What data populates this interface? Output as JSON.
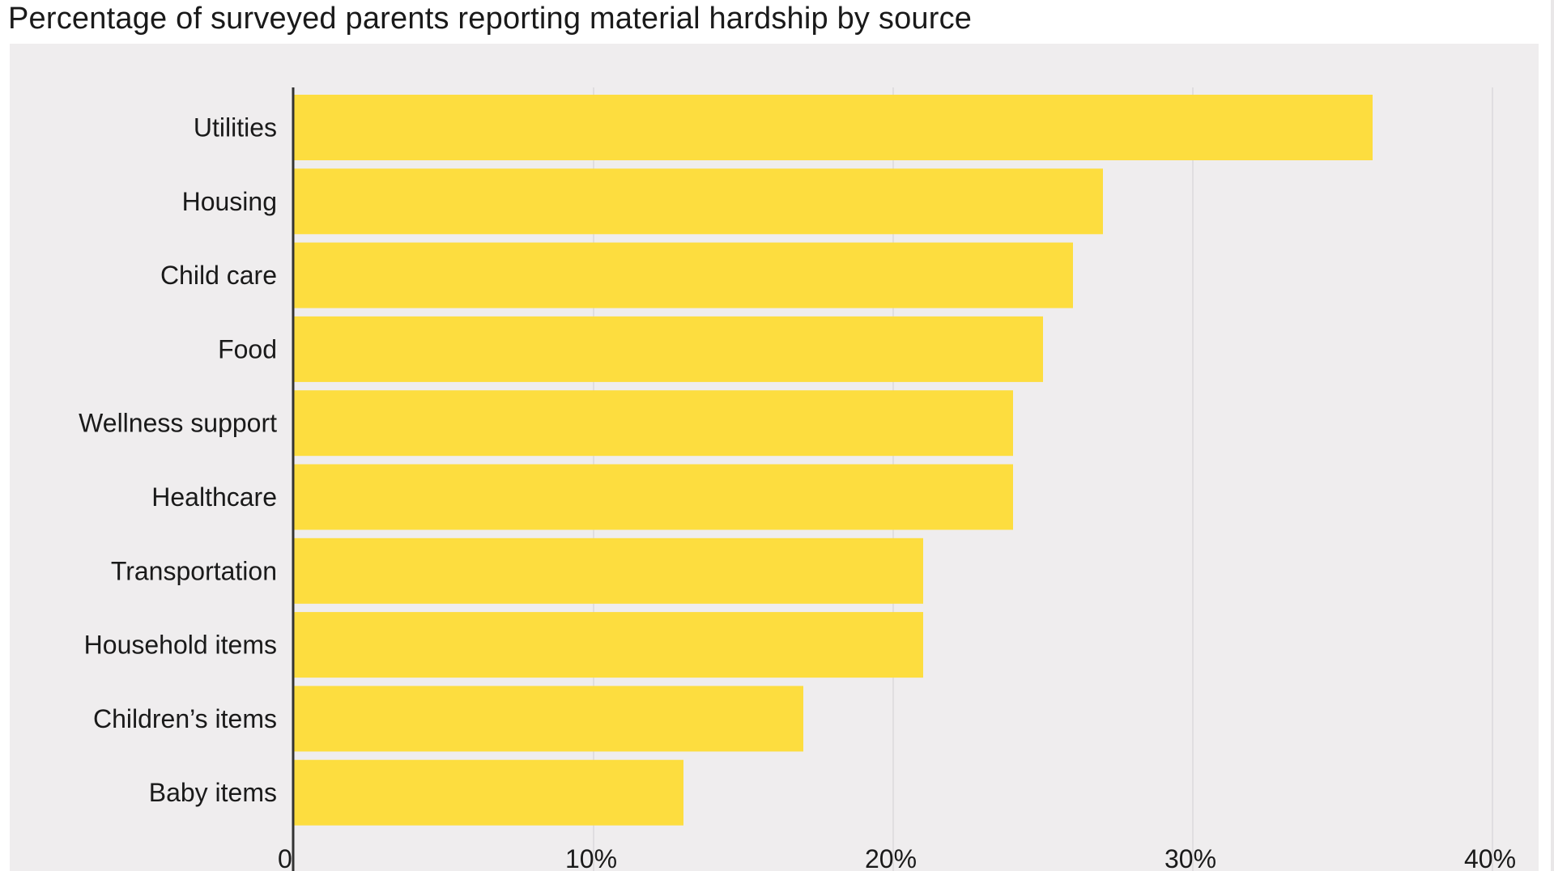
{
  "title": "Percentage of surveyed parents reporting material hardship by source",
  "colors": {
    "bar": "#fddd3f",
    "panel": "#efedee",
    "grid": "#dcdadb",
    "axis": "#333333"
  },
  "chart_data": {
    "type": "bar",
    "orientation": "horizontal",
    "title": "Percentage of surveyed parents reporting material hardship by source",
    "xlabel": "",
    "ylabel": "",
    "categories": [
      "Utilities",
      "Housing",
      "Child care",
      "Food",
      "Wellness support",
      "Healthcare",
      "Transportation",
      "Household items",
      "Children’s items",
      "Baby items"
    ],
    "values": [
      36,
      27,
      26,
      25,
      24,
      24,
      21,
      21,
      17,
      13
    ],
    "unit": "%",
    "xlim": [
      0,
      40
    ],
    "ticks": [
      0,
      10,
      20,
      30,
      40
    ],
    "tick_labels": [
      "0",
      "10%",
      "20%",
      "30%",
      "40%"
    ],
    "grid": true
  }
}
